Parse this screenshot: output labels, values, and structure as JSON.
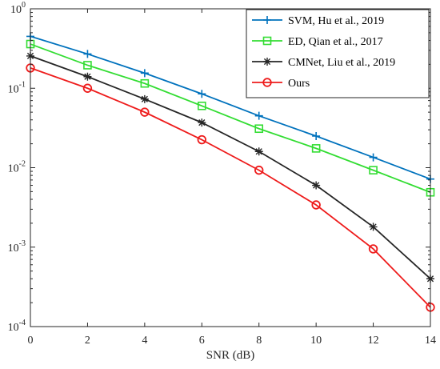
{
  "chart_data": {
    "type": "line",
    "xlabel": "SNR (dB)",
    "ylabel": "",
    "xlim": [
      0,
      14
    ],
    "ylim": [
      0.0001,
      1
    ],
    "y_scale": "log",
    "x_ticks": [
      "0",
      "2",
      "4",
      "6",
      "8",
      "10",
      "12",
      "14"
    ],
    "y_ticks": [
      {
        "base": "10",
        "exp": "0"
      },
      {
        "base": "10",
        "exp": "-1"
      },
      {
        "base": "10",
        "exp": "-2"
      },
      {
        "base": "10",
        "exp": "-3"
      },
      {
        "base": "10",
        "exp": "-4"
      }
    ],
    "grid": false,
    "legend_position": "top-right",
    "x": [
      0,
      2,
      4,
      6,
      8,
      10,
      12,
      14
    ],
    "series": [
      {
        "name": "SVM, Hu et al., 2019",
        "color": "#0072BD",
        "marker": "plus",
        "values": [
          0.45,
          0.27,
          0.155,
          0.085,
          0.045,
          0.025,
          0.0135,
          0.0072
        ]
      },
      {
        "name": "ED, Qian et al., 2017",
        "color": "#33DD33",
        "marker": "square",
        "values": [
          0.36,
          0.195,
          0.115,
          0.06,
          0.031,
          0.0175,
          0.0093,
          0.0049
        ]
      },
      {
        "name": "CMNet, Liu et al., 2019",
        "color": "#262626",
        "marker": "asterisk",
        "values": [
          0.255,
          0.14,
          0.073,
          0.037,
          0.016,
          0.006,
          0.0018,
          0.0004
        ]
      },
      {
        "name": "Ours",
        "color": "#EE1C1C",
        "marker": "circle",
        "values": [
          0.18,
          0.1,
          0.05,
          0.0225,
          0.0093,
          0.0034,
          0.00095,
          0.000175
        ]
      }
    ]
  }
}
